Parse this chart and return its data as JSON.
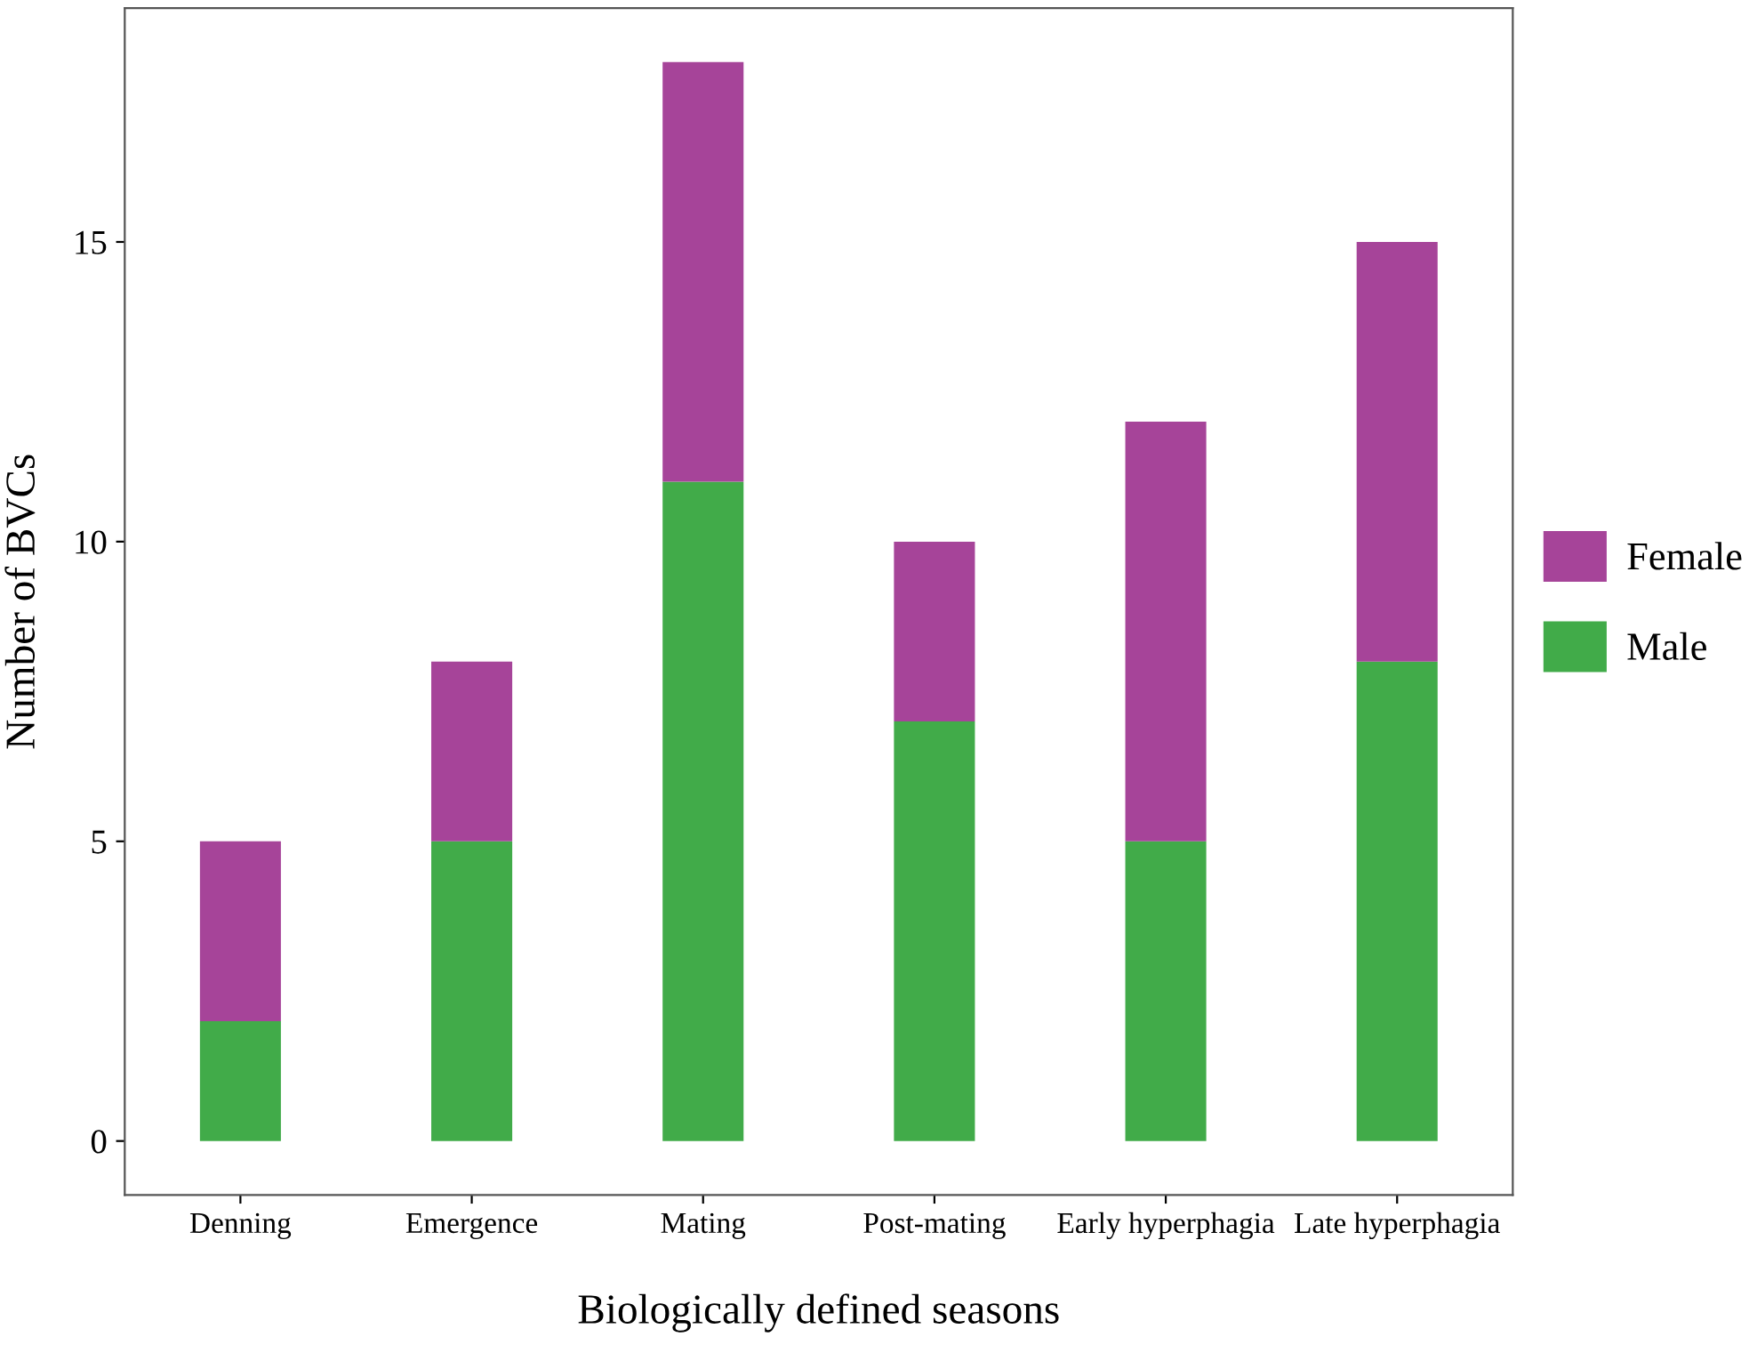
{
  "chart_data": {
    "type": "bar",
    "stacked": true,
    "xlabel": "Biologically defined seasons",
    "ylabel": "Number of BVCs",
    "categories": [
      "Denning",
      "Emergence",
      "Mating",
      "Post-mating",
      "Early hyperphagia",
      "Late hyperphagia"
    ],
    "series": [
      {
        "name": "Male",
        "color": "#41ab49",
        "values": [
          2,
          5,
          11,
          7,
          5,
          8
        ]
      },
      {
        "name": "Female",
        "color": "#a64499",
        "values": [
          3,
          3,
          7,
          3,
          7,
          7
        ]
      }
    ],
    "ylim": [
      -0.9,
      18.9
    ],
    "yticks": [
      0,
      5,
      10,
      15
    ],
    "grid": false,
    "legend": "right"
  }
}
